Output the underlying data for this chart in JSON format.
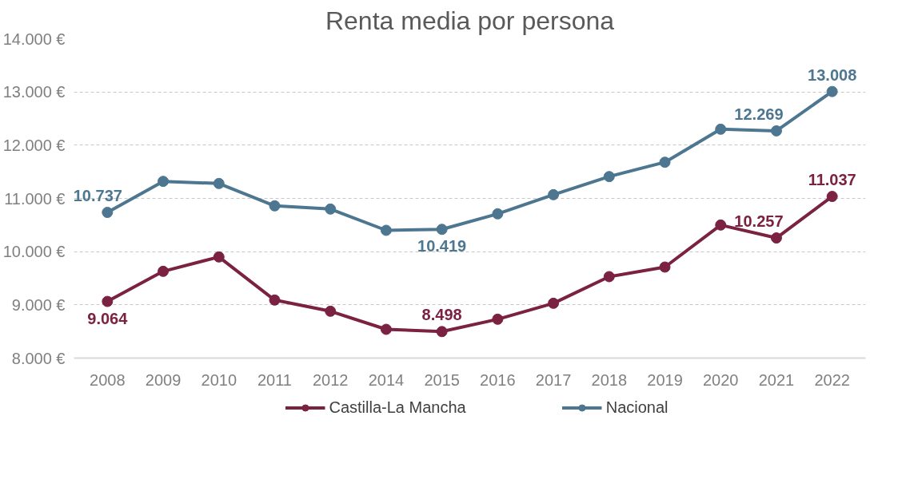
{
  "chart_data": {
    "type": "line",
    "title": "Renta media por persona",
    "categories": [
      "2008",
      "2009",
      "2010",
      "2011",
      "2012",
      "2014",
      "2015",
      "2016",
      "2017",
      "2018",
      "2019",
      "2020",
      "2021",
      "2022"
    ],
    "series": [
      {
        "name": "Castilla-La Mancha",
        "color": "#7b2142",
        "values": [
          9064,
          9630,
          9900,
          9090,
          8880,
          8540,
          8498,
          8730,
          9030,
          9530,
          9710,
          10500,
          10257,
          11037
        ],
        "value_labels": [
          "9.064",
          null,
          null,
          null,
          null,
          null,
          "8.498",
          null,
          null,
          null,
          null,
          null,
          "10.257",
          "11.037"
        ]
      },
      {
        "name": "Nacional",
        "color": "#4d7690",
        "values": [
          10737,
          11320,
          11280,
          10860,
          10800,
          10400,
          10419,
          10710,
          11070,
          11410,
          11680,
          12300,
          12269,
          13008
        ],
        "value_labels": [
          "10.737",
          null,
          null,
          null,
          null,
          null,
          "10.419",
          null,
          null,
          null,
          null,
          null,
          "12.269",
          "13.008"
        ]
      }
    ],
    "ylim": [
      8000,
      14000
    ],
    "yticks": [
      {
        "value": 8000,
        "label": "8.000 €"
      },
      {
        "value": 9000,
        "label": "9.000 €"
      },
      {
        "value": 10000,
        "label": "10.000 €"
      },
      {
        "value": 11000,
        "label": "11.000 €"
      },
      {
        "value": 12000,
        "label": "12.000 €"
      },
      {
        "value": 13000,
        "label": "13.000 €"
      },
      {
        "value": 14000,
        "label": "14.000 €"
      }
    ],
    "grid": "y",
    "legend": "bottom",
    "marker": "circle",
    "line_style": "solid"
  }
}
